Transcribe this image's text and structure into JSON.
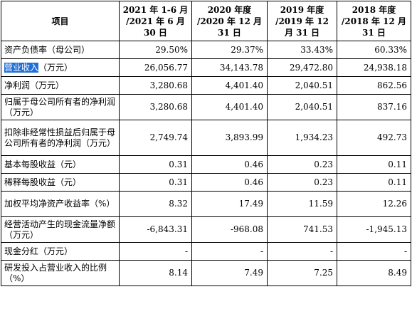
{
  "table": {
    "header": {
      "item": "项目",
      "periods": [
        "2021 年 1-6 月 /2021 年 6 月 30 日",
        "2020 年度 /2020 年 12 月 31 日",
        "2019 年度 /2019 年 12 月 31 日",
        "2018 年度 /2018 年 12 月 31 日"
      ]
    },
    "rows": [
      {
        "label": "资产负债率（母公司）",
        "values": [
          "29.50%",
          "29.37%",
          "33.43%",
          "60.33%"
        ]
      },
      {
        "label_highlight": "营业收入",
        "label_rest": "（万元）",
        "values": [
          "26,056.77",
          "34,143.78",
          "29,472.80",
          "24,938.18"
        ]
      },
      {
        "label": "净利润（万元）",
        "values": [
          "3,280.68",
          "4,401.40",
          "2,040.51",
          "862.56"
        ]
      },
      {
        "label": "归属于母公司所有者的净利润（万元）",
        "values": [
          "3,280.68",
          "4,401.40",
          "2,040.51",
          "837.16"
        ]
      },
      {
        "label": "扣除非经常性损益后归属于母公司所有者的净利润（万元）",
        "values": [
          "2,749.74",
          "3,893.99",
          "1,934.23",
          "492.73"
        ]
      },
      {
        "label": "基本每股收益（元）",
        "values": [
          "0.31",
          "0.46",
          "0.23",
          "0.11"
        ]
      },
      {
        "label": "稀释每股收益（元）",
        "values": [
          "0.31",
          "0.46",
          "0.23",
          "0.11"
        ]
      },
      {
        "label": "加权平均净资产收益率（%）",
        "values": [
          "8.32",
          "17.49",
          "11.59",
          "12.26"
        ]
      },
      {
        "label": "经营活动产生的现金流量净额（万元）",
        "values": [
          "-6,843.31",
          "-968.08",
          "741.53",
          "-1,945.13"
        ]
      },
      {
        "label": "现金分红（万元）",
        "values": [
          "-",
          "-",
          "-",
          "-"
        ]
      },
      {
        "label": "研发投入占营业收入的比例（%）",
        "values": [
          "8.14",
          "7.49",
          "7.25",
          "8.49"
        ]
      }
    ]
  }
}
